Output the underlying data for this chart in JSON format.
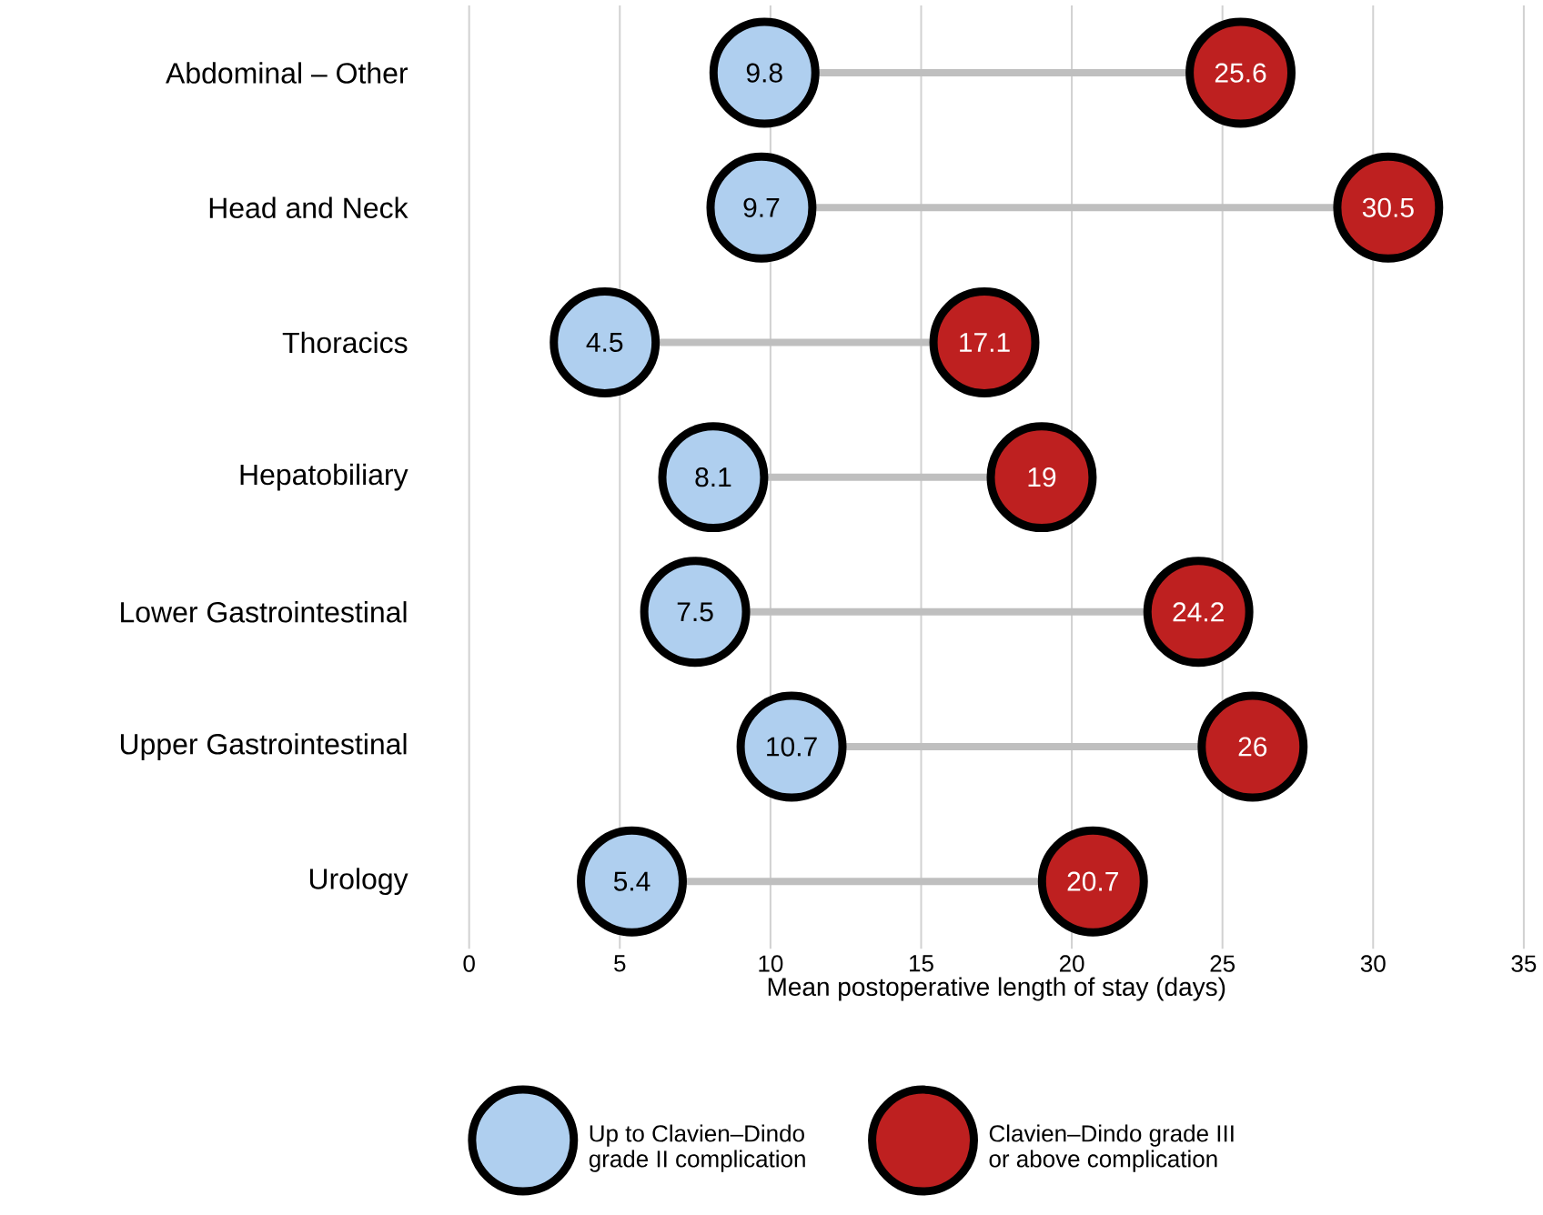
{
  "chart_data": {
    "type": "scatter",
    "orientation": "horizontal",
    "categories": [
      "Abdominal – Other",
      "Head and Neck",
      "Thoracics",
      "Hepatobiliary",
      "Lower Gastrointestinal",
      "Upper Gastrointestinal",
      "Urology"
    ],
    "series": [
      {
        "name": "Up to Clavien–Dindo grade II complication",
        "color": "#afcfef",
        "values": [
          9.8,
          9.7,
          4.5,
          8.1,
          7.5,
          10.7,
          5.4
        ]
      },
      {
        "name": "Clavien–Dindo grade III or above complication",
        "color": "#be2020",
        "values": [
          25.6,
          30.5,
          17.1,
          19,
          24.2,
          26,
          20.7
        ]
      }
    ],
    "xlabel": "Mean postoperative length of stay (days)",
    "xlim": [
      0,
      35
    ],
    "xticks": [
      0,
      5,
      10,
      15,
      20,
      25,
      30,
      35
    ],
    "grid": "x",
    "legend": "bottom",
    "data_labels": true,
    "marker": "circle"
  }
}
